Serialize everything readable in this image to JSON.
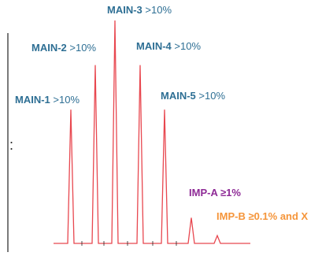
{
  "chart_data": {
    "type": "line",
    "title": "",
    "xlabel": "",
    "ylabel": "",
    "ylim": [
      0,
      100
    ],
    "baseline": 0,
    "axis_tick_glyph": ":",
    "colors": {
      "trace": "#e8474f",
      "axis": "#222222",
      "main_label": "#2e6f94",
      "impurity_a": "#8e2a96",
      "impurity_b": "#f5953a"
    },
    "peaks": [
      {
        "id": "main-1",
        "x": 90,
        "height": 60,
        "name": "MAIN-1",
        "threshold": ">10%",
        "label_color": "main_label"
      },
      {
        "id": "main-2",
        "x": 121,
        "height": 80,
        "name": "MAIN-2",
        "threshold": ">10%",
        "label_color": "main_label"
      },
      {
        "id": "main-3",
        "x": 146,
        "height": 100,
        "name": "MAIN-3",
        "threshold": ">10%",
        "label_color": "main_label"
      },
      {
        "id": "main-4",
        "x": 178,
        "height": 80,
        "name": "MAIN-4",
        "threshold": ">10%",
        "label_color": "main_label"
      },
      {
        "id": "main-5",
        "x": 209,
        "height": 60,
        "name": "MAIN-5",
        "threshold": ">10%",
        "label_color": "main_label"
      },
      {
        "id": "imp-a",
        "x": 243,
        "height": 11.5,
        "name": "IMP-A ≥1%",
        "threshold": "",
        "label_color": "impurity_a"
      },
      {
        "id": "imp-b",
        "x": 276,
        "height": 3.5,
        "name": "IMP-B ≥0.1% and X",
        "threshold": "",
        "label_color": "impurity_b"
      }
    ]
  }
}
